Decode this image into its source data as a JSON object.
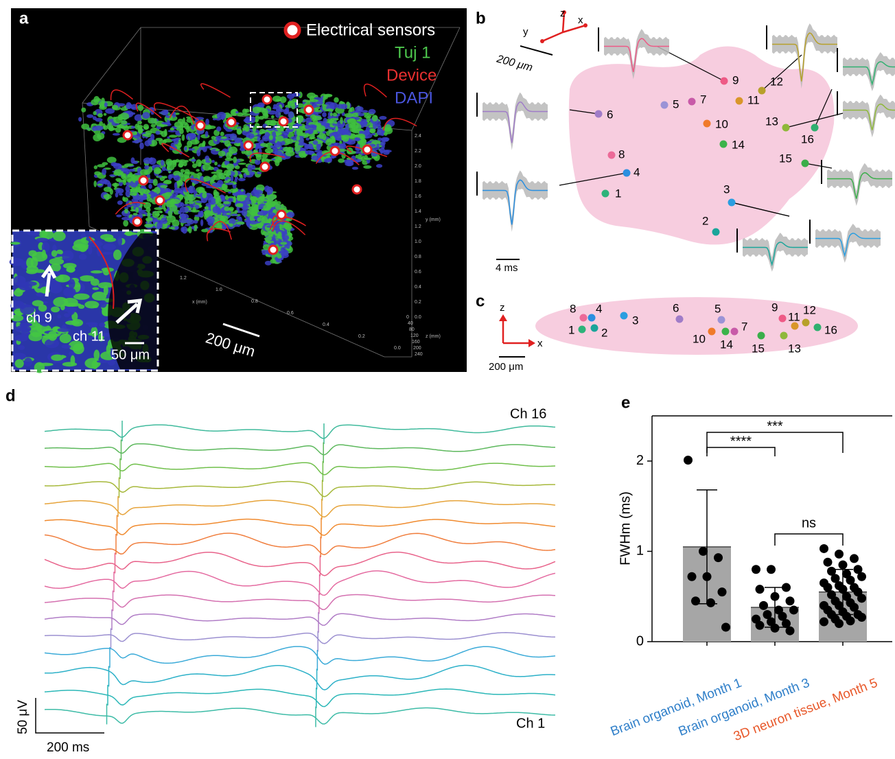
{
  "panels": {
    "a": {
      "label": "a",
      "legend": [
        "Electrical sensors",
        "Tuj 1",
        "Device",
        "DAPI"
      ],
      "scale_bar": "200 μm",
      "inset_labels": [
        "ch 9",
        "ch 11"
      ],
      "inset_scale_bar": "50 μm",
      "y_axis_label": "y (mm)",
      "y_axis_ticks": [
        "2.4",
        "2.2",
        "2.0",
        "1.8",
        "1.6",
        "1.4",
        "1.2",
        "1.0",
        "0.8",
        "0.6",
        "0.4",
        "0.2",
        "0.0"
      ],
      "x_axis_label": "x (mm)",
      "x_axis_ticks": [
        "1.2",
        "1.0",
        "0.8",
        "0.6",
        "0.4",
        "0.2",
        "0.0"
      ],
      "z_axis_label": "z (mm)",
      "z_axis_ticks": [
        "0",
        "40",
        "80",
        "120",
        "160",
        "200",
        "240"
      ]
    },
    "b": {
      "label": "b",
      "axes": [
        "x",
        "y",
        "z"
      ],
      "scale_bar": "200 μm",
      "time_bar": "4 ms",
      "channels": [
        {
          "name": "1",
          "color": "#2db37a"
        },
        {
          "name": "2",
          "color": "#1aa59a"
        },
        {
          "name": "3",
          "color": "#2a9ee0"
        },
        {
          "name": "4",
          "color": "#2a8fe0"
        },
        {
          "name": "5",
          "color": "#9b93d6"
        },
        {
          "name": "6",
          "color": "#a07cc8"
        },
        {
          "name": "7",
          "color": "#c85aa8"
        },
        {
          "name": "8",
          "color": "#ec6a98"
        },
        {
          "name": "9",
          "color": "#ee5a86"
        },
        {
          "name": "10",
          "color": "#f07a2a"
        },
        {
          "name": "11",
          "color": "#d9962a"
        },
        {
          "name": "12",
          "color": "#b7a02a"
        },
        {
          "name": "13",
          "color": "#8fb83a"
        },
        {
          "name": "14",
          "color": "#3cb34a"
        },
        {
          "name": "15",
          "color": "#3aae4a"
        },
        {
          "name": "16",
          "color": "#2fb070"
        }
      ]
    },
    "c": {
      "label": "c",
      "axes": [
        "z",
        "x"
      ],
      "scale_bar": "200 μm"
    },
    "d": {
      "label": "d",
      "top_channel": "Ch 16",
      "bottom_channel": "Ch 1",
      "amplitude_bar": "50 μV",
      "time_bar": "200 ms",
      "trace_colors": [
        "#3fba9c",
        "#5cb85c",
        "#6fbf4a",
        "#a6b83a",
        "#e6a33a",
        "#f08a2e",
        "#f07d3c",
        "#e8628a",
        "#e46aa0",
        "#d470b0",
        "#b07cc6",
        "#9b8fd0",
        "#3aaad8",
        "#2bb0c8",
        "#2ab7b7",
        "#3cbba6"
      ]
    }
  },
  "chart_data": {
    "type": "bar",
    "panel_label": "e",
    "y_label": "FWHm (ms)",
    "categories": [
      "Brain organoid, Month 1",
      "Brain organoid, Month 3",
      "3D neuron tissue, Month 5"
    ],
    "category_colors": [
      "#2f7fc9",
      "#2f7fc9",
      "#e8582a"
    ],
    "values": [
      1.05,
      0.38,
      0.55
    ],
    "errors": [
      0.63,
      0.22,
      0.25
    ],
    "points": [
      [
        2.01,
        1.0,
        0.93,
        0.72,
        0.72,
        0.55,
        0.45,
        0.43,
        0.16
      ],
      [
        0.8,
        0.8,
        0.6,
        0.58,
        0.5,
        0.45,
        0.4,
        0.35,
        0.35,
        0.3,
        0.28,
        0.25,
        0.22,
        0.2,
        0.18,
        0.15,
        0.12
      ],
      [
        1.03,
        0.97,
        0.92,
        0.88,
        0.85,
        0.8,
        0.78,
        0.75,
        0.72,
        0.7,
        0.68,
        0.65,
        0.62,
        0.6,
        0.6,
        0.58,
        0.55,
        0.52,
        0.5,
        0.48,
        0.45,
        0.43,
        0.4,
        0.4,
        0.38,
        0.35,
        0.33,
        0.3,
        0.3,
        0.28,
        0.27,
        0.25,
        0.23,
        0.22,
        0.2
      ]
    ],
    "color": "#a6a6a6",
    "point_color": "#000000",
    "annotations": [
      "****",
      "***",
      "ns"
    ],
    "ylim": [
      0,
      2.5
    ],
    "yticks": [
      0,
      1,
      2
    ]
  }
}
